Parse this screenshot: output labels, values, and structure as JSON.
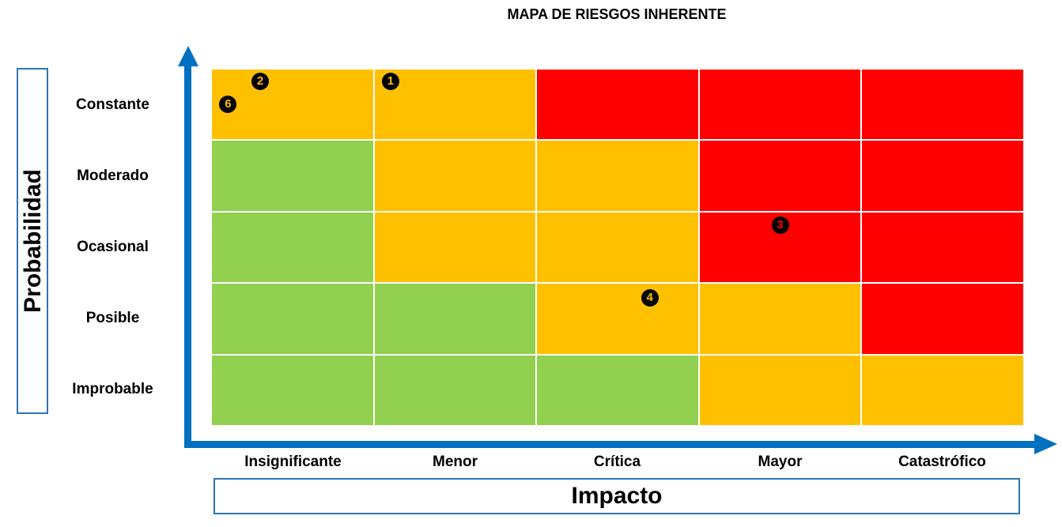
{
  "title": "MAPA DE RIESGOS INHERENTE",
  "colors": {
    "low": "#92D050",
    "medium": "#FFC000",
    "high": "#FF0000",
    "axis": "#0070C0",
    "box_border": "#2F75B5"
  },
  "y_axis": {
    "title": "Probabilidad",
    "levels": [
      "Constante",
      "Moderado",
      "Ocasional",
      "Posible",
      "Improbable"
    ]
  },
  "x_axis": {
    "title": "Impacto",
    "levels": [
      "Insignificante",
      "Menor",
      "Crítica",
      "Mayor",
      "Catastrófico"
    ]
  },
  "chart_data": {
    "type": "heatmap",
    "title": "MAPA DE RIESGOS INHERENTE",
    "xlabel": "Impacto",
    "ylabel": "Probabilidad",
    "x_categories": [
      "Insignificante",
      "Menor",
      "Crítica",
      "Mayor",
      "Catastrófico"
    ],
    "y_categories": [
      "Constante",
      "Moderado",
      "Ocasional",
      "Posible",
      "Improbable"
    ],
    "cells": [
      [
        "medium",
        "medium",
        "high",
        "high",
        "high"
      ],
      [
        "low",
        "medium",
        "medium",
        "high",
        "high"
      ],
      [
        "low",
        "medium",
        "medium",
        "high",
        "high"
      ],
      [
        "low",
        "low",
        "medium",
        "medium",
        "high"
      ],
      [
        "low",
        "low",
        "low",
        "medium",
        "medium"
      ]
    ],
    "risks": [
      {
        "id": "1",
        "probabilidad": "Constante",
        "impacto": "Menor",
        "level": "medium",
        "pos": [
          0.1,
          0.17
        ]
      },
      {
        "id": "2",
        "probabilidad": "Constante",
        "impacto": "Insignificante",
        "level": "medium",
        "pos": [
          0.3,
          0.17
        ]
      },
      {
        "id": "3",
        "probabilidad": "Ocasional",
        "impacto": "Mayor",
        "level": "high",
        "pos": [
          0.5,
          0.18
        ]
      },
      {
        "id": "4",
        "probabilidad": "Posible",
        "impacto": "Crítica",
        "level": "medium",
        "pos": [
          0.7,
          0.2
        ]
      },
      {
        "id": "6",
        "probabilidad": "Constante",
        "impacto": "Insignificante",
        "level": "medium",
        "pos": [
          0.1,
          0.5
        ]
      }
    ],
    "legend": [],
    "grid": true
  }
}
